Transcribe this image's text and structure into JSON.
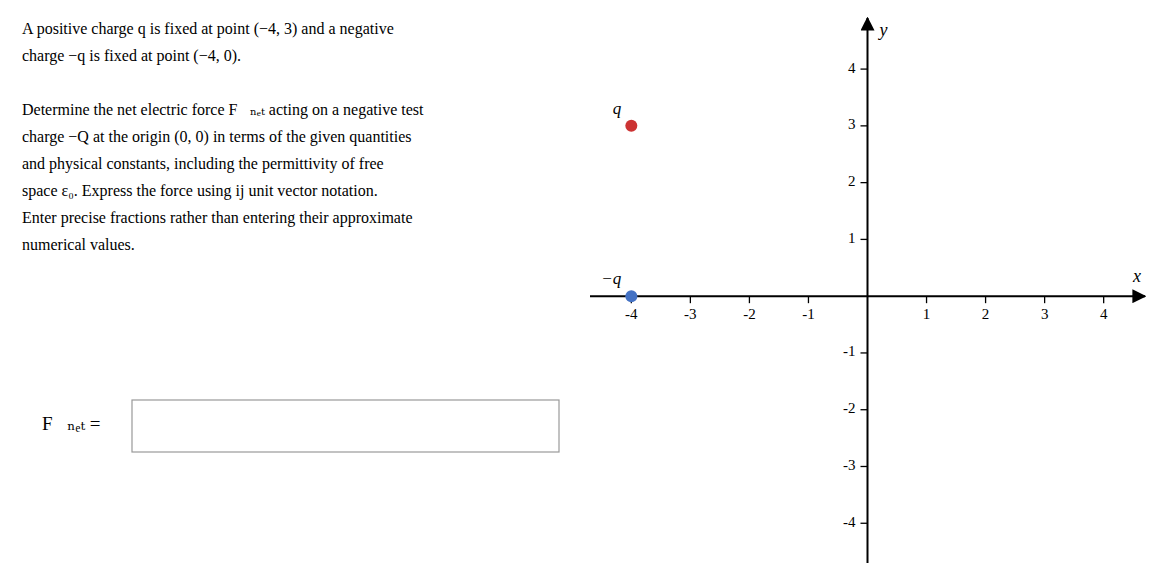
{
  "chart_data": {
    "type": "scatter",
    "annotations": [
      [
        "A positive charge q is fixed at point (−4, 3) and a negative",
        "charge −q is fixed at point (−4, 0)."
      ],
      [
        "Determine the net electric force F⃗ₙₑₜ acting on a negative test",
        "charge −Q at the origin (0, 0) in terms of the given quantities",
        "and physical constants, including the permittivity of free",
        "space ε₀. Express the force using ij unit vector notation.",
        "Enter precise fractions rather than entering their approximate",
        "numerical values."
      ],
      "F⃗ₙₑₜ  ="
    ],
    "xlabel": "x",
    "ylabel": "y",
    "xlim": [
      -4.7,
      4.7
    ],
    "ylim": [
      -4.7,
      4.9
    ],
    "xticks": [
      -4,
      -3,
      -2,
      -1,
      1,
      2,
      3,
      4
    ],
    "yticks": [
      -4,
      -3,
      -2,
      -1,
      1,
      2,
      3,
      4
    ],
    "series": [
      {
        "name": "q",
        "color": "#cc3333",
        "x": [
          -4
        ],
        "values": [
          3
        ]
      },
      {
        "name": "−q",
        "color": "#4472c4",
        "x": [
          -4
        ],
        "values": [
          0
        ]
      }
    ]
  }
}
